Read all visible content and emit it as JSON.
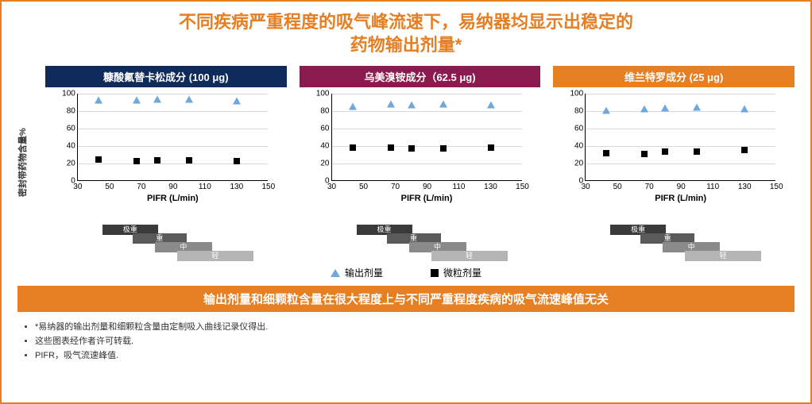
{
  "colors": {
    "border": "#e67e22",
    "title": "#e67e22",
    "header1_bg": "#0f2b5b",
    "header2_bg": "#8b1a4e",
    "header3_bg": "#e67e22",
    "triangle": "#6fa8dc",
    "square": "#000000",
    "grid": "#d9d9d9",
    "conclusion_bg": "#e67e22",
    "severity_colors": [
      "#3a3a3a",
      "#5a5a5a",
      "#8a8a8a",
      "#b5b5b5"
    ]
  },
  "title_line1": "不同疾病严重程度的吸气峰流速下，易纳器均显示出稳定的",
  "title_line2": "药物输出剂量*",
  "title_fontsize": 22,
  "y_axis_label": "密封带药物含量%",
  "x_axis_label": "PIFR (L/min)",
  "y_ticks": [
    0,
    20,
    40,
    60,
    80,
    100
  ],
  "x_ticks": [
    30,
    50,
    70,
    90,
    110,
    130,
    150
  ],
  "xlim": [
    30,
    150
  ],
  "ylim": [
    0,
    100
  ],
  "charts": [
    {
      "header": "糠酸氟替卡松成分 (100 μg)",
      "header_bg_key": "header1_bg",
      "triangle": [
        [
          43,
          93
        ],
        [
          67,
          93
        ],
        [
          80,
          94
        ],
        [
          100,
          94
        ],
        [
          130,
          92
        ]
      ],
      "square": [
        [
          43,
          25
        ],
        [
          67,
          23
        ],
        [
          80,
          24
        ],
        [
          100,
          24
        ],
        [
          130,
          23
        ]
      ]
    },
    {
      "header": "乌美溴铵成分（62.5 μg)",
      "header_bg_key": "header2_bg",
      "triangle": [
        [
          43,
          86
        ],
        [
          67,
          88
        ],
        [
          80,
          87
        ],
        [
          100,
          88
        ],
        [
          130,
          87
        ]
      ],
      "square": [
        [
          43,
          38
        ],
        [
          67,
          38
        ],
        [
          80,
          37
        ],
        [
          100,
          37
        ],
        [
          130,
          38
        ]
      ]
    },
    {
      "header": "维兰特罗成分 (25 μg)",
      "header_bg_key": "header3_bg",
      "triangle": [
        [
          43,
          81
        ],
        [
          67,
          83
        ],
        [
          80,
          84
        ],
        [
          100,
          85
        ],
        [
          130,
          83
        ]
      ],
      "square": [
        [
          43,
          32
        ],
        [
          67,
          31
        ],
        [
          80,
          34
        ],
        [
          100,
          34
        ],
        [
          130,
          36
        ]
      ]
    }
  ],
  "severity_bars": [
    {
      "label": "极重",
      "x0": 43,
      "x1": 78,
      "top": 0
    },
    {
      "label": "重",
      "x0": 62,
      "x1": 96,
      "top": 11
    },
    {
      "label": "中",
      "x0": 76,
      "x1": 112,
      "top": 22
    },
    {
      "label": "轻",
      "x0": 90,
      "x1": 138,
      "top": 33
    }
  ],
  "legend": {
    "triangle_label": "输出剂量",
    "square_label": "微粒剂量"
  },
  "conclusion": "输出剂量和细颗粒含量在很大程度上与不同严重程度疾病的吸气流速峰值无关",
  "footnotes": [
    "*易纳器的输出剂量和细颗粒含量由定制吸入曲线记录仪得出.",
    "这些图表经作者许可转载.",
    "PIFR，吸气流速峰值."
  ]
}
